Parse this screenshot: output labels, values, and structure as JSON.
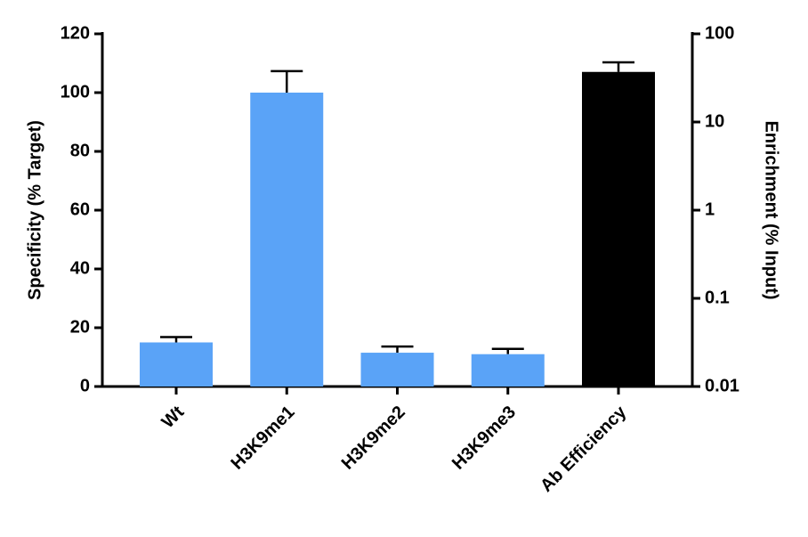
{
  "chart_data": {
    "type": "bar",
    "y_label": "Specificity (% Target)",
    "y2_label": "Enrichment (% Input)",
    "categories": [
      "Wt",
      "H3K9me1",
      "H3K9me2",
      "H3K9me3",
      "Ab Efficiency"
    ],
    "series": [
      {
        "color": "#5aa3f7",
        "values": [
          15,
          100,
          11.5,
          11,
          null
        ],
        "errors": [
          1.8,
          7.3,
          2.1,
          1.8,
          null
        ]
      },
      {
        "color": "#000000",
        "axis": "y2",
        "values": [
          null,
          null,
          null,
          null,
          37
        ],
        "errors": [
          null,
          null,
          null,
          null,
          10.5
        ]
      }
    ],
    "ylim": [
      0,
      120
    ],
    "yticks": [
      0,
      20,
      40,
      60,
      80,
      100,
      120
    ],
    "y2lim": [
      0.01,
      100
    ],
    "y2ticks": [
      0.01,
      0.1,
      1,
      10,
      100
    ],
    "y2log": true,
    "grid": false
  }
}
